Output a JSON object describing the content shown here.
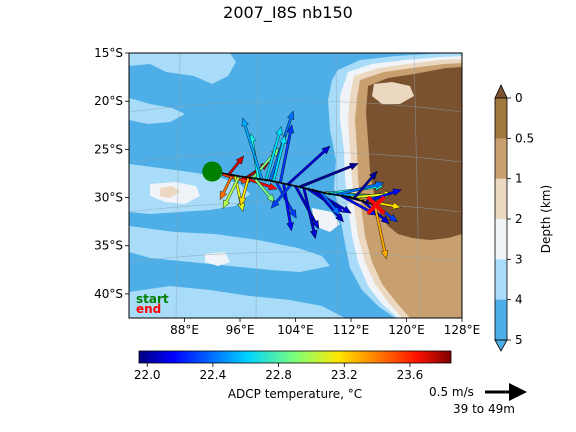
{
  "chart_data": {
    "type": "map",
    "title": "2007_I8S nb150",
    "x_axis": {
      "range_deg_e": [
        80,
        128
      ],
      "tick_values": [
        88,
        96,
        104,
        112,
        120,
        128
      ],
      "tick_labels": [
        "88°E",
        "96°E",
        "104°E",
        "112°E",
        "120°E",
        "128°E"
      ]
    },
    "y_axis": {
      "range_deg": [
        -42.5,
        -15
      ],
      "tick_values": [
        -15,
        -20,
        -25,
        -30,
        -35,
        -40
      ],
      "tick_labels": [
        "15°S",
        "20°S",
        "25°S",
        "30°S",
        "35°S",
        "40°S"
      ]
    },
    "legend": {
      "start": "start",
      "end": "end",
      "start_color": "#008000",
      "end_color": "#ff0000"
    },
    "start_point": {
      "lon": 92.0,
      "lat": -27.3
    },
    "end_point": {
      "lon": 115.6,
      "lat": -30.8
    },
    "ship_track": [
      [
        92.0,
        -27.3
      ],
      [
        96,
        -27.8
      ],
      [
        100,
        -28.2
      ],
      [
        104,
        -28.8
      ],
      [
        108,
        -29.5
      ],
      [
        112,
        -30.0
      ],
      [
        115.6,
        -30.8
      ]
    ],
    "depth_colorbar": {
      "label": "Depth (km)",
      "tick_labels": [
        "0",
        "0.5",
        "1",
        "2",
        "3",
        "4",
        "5"
      ],
      "bands": [
        "#a07840",
        "#c8a070",
        "#ecd8c0",
        "#f0f4f8",
        "#a8dcf8",
        "#4eaee8"
      ],
      "extend_top_color": "#7a5230",
      "extend_bottom_color": "#4eaee8"
    },
    "temperature_colorbar": {
      "label": "ADCP temperature, °C",
      "range": [
        21.95,
        23.85
      ],
      "tick_values": [
        22.0,
        22.4,
        22.8,
        23.2,
        23.6
      ],
      "tick_labels": [
        "22.0",
        "22.4",
        "22.8",
        "23.2",
        "23.6"
      ]
    },
    "scale_arrow": {
      "label": "0.5 m/s",
      "depth_label": "39 to 49m"
    },
    "vectors": [
      {
        "lon": 93.5,
        "lat": -27.6,
        "u": 0.35,
        "v": -0.1,
        "t": 23.5
      },
      {
        "lon": 94.3,
        "lat": -27.7,
        "u": 0.2,
        "v": 0.25,
        "t": 23.7
      },
      {
        "lon": 94.8,
        "lat": -27.8,
        "u": -0.15,
        "v": -0.3,
        "t": 23.4
      },
      {
        "lon": 95.3,
        "lat": -27.8,
        "u": 0.1,
        "v": -0.45,
        "t": 23.1
      },
      {
        "lon": 95.8,
        "lat": -27.9,
        "u": -0.2,
        "v": -0.4,
        "t": 23.0
      },
      {
        "lon": 96.3,
        "lat": -27.9,
        "u": 0.45,
        "v": -0.15,
        "t": 23.6
      },
      {
        "lon": 96.8,
        "lat": -28.0,
        "u": 0.3,
        "v": 0.2,
        "t": 23.8
      },
      {
        "lon": 97.2,
        "lat": -28.0,
        "u": -0.1,
        "v": -0.35,
        "t": 23.2
      },
      {
        "lon": 97.7,
        "lat": -28.1,
        "u": 0.35,
        "v": 0.4,
        "t": 22.9
      },
      {
        "lon": 98.2,
        "lat": -28.1,
        "u": 0.25,
        "v": -0.3,
        "t": 22.9
      },
      {
        "lon": 98.7,
        "lat": -28.2,
        "u": -0.1,
        "v": 0.6,
        "t": 22.7
      },
      {
        "lon": 99.2,
        "lat": -28.2,
        "u": -0.25,
        "v": 0.8,
        "t": 22.5
      },
      {
        "lon": 99.7,
        "lat": -28.3,
        "u": 0.2,
        "v": 0.7,
        "t": 22.6
      },
      {
        "lon": 100.3,
        "lat": -28.3,
        "u": 0.3,
        "v": 0.9,
        "t": 22.4
      },
      {
        "lon": 100.8,
        "lat": -28.4,
        "u": 0.15,
        "v": 0.6,
        "t": 22.6
      },
      {
        "lon": 101.3,
        "lat": -28.5,
        "u": 0.25,
        "v": -0.45,
        "t": 22.3
      },
      {
        "lon": 101.8,
        "lat": -28.5,
        "u": 0.15,
        "v": 0.75,
        "t": 22.3
      },
      {
        "lon": 102.3,
        "lat": -28.6,
        "u": 0.1,
        "v": -0.6,
        "t": 22.2
      },
      {
        "lon": 102.8,
        "lat": -28.7,
        "u": 0.55,
        "v": 0.5,
        "t": 22.1
      },
      {
        "lon": 103.3,
        "lat": -28.7,
        "u": -0.25,
        "v": -0.3,
        "t": 22.3
      },
      {
        "lon": 104.0,
        "lat": -28.8,
        "u": 0.3,
        "v": -0.55,
        "t": 22.1
      },
      {
        "lon": 104.6,
        "lat": -28.9,
        "u": 0.75,
        "v": 0.3,
        "t": 22.0
      },
      {
        "lon": 105.2,
        "lat": -29.0,
        "u": 0.15,
        "v": -0.65,
        "t": 22.1
      },
      {
        "lon": 105.8,
        "lat": -29.1,
        "u": 0.45,
        "v": -0.3,
        "t": 22.2
      },
      {
        "lon": 106.4,
        "lat": -29.2,
        "u": 0.5,
        "v": -0.3,
        "t": 22.1
      },
      {
        "lon": 107.0,
        "lat": -29.3,
        "u": 0.35,
        "v": -0.4,
        "t": 22.1
      },
      {
        "lon": 107.6,
        "lat": -29.4,
        "u": 0.25,
        "v": -0.3,
        "t": 22.4
      },
      {
        "lon": 108.2,
        "lat": -29.5,
        "u": 0.8,
        "v": -0.05,
        "t": 22.9
      },
      {
        "lon": 108.8,
        "lat": -29.6,
        "u": 0.7,
        "v": 0.1,
        "t": 22.7
      },
      {
        "lon": 109.4,
        "lat": -29.6,
        "u": 0.65,
        "v": -0.05,
        "t": 22.5
      },
      {
        "lon": 110.0,
        "lat": -29.7,
        "u": 0.6,
        "v": 0.15,
        "t": 22.4
      },
      {
        "lon": 110.6,
        "lat": -29.8,
        "u": 0.45,
        "v": -0.25,
        "t": 22.2
      },
      {
        "lon": 111.2,
        "lat": -29.9,
        "u": 0.45,
        "v": -0.1,
        "t": 22.2
      },
      {
        "lon": 111.8,
        "lat": -30.0,
        "u": 0.55,
        "v": 0.05,
        "t": 23.1
      },
      {
        "lon": 112.4,
        "lat": -30.1,
        "u": 0.3,
        "v": 0.35,
        "t": 22.0
      },
      {
        "lon": 113.0,
        "lat": -30.2,
        "u": 0.55,
        "v": -0.1,
        "t": 23.2
      },
      {
        "lon": 113.6,
        "lat": -30.3,
        "u": 0.35,
        "v": -0.3,
        "t": 22.1
      },
      {
        "lon": 114.2,
        "lat": -30.4,
        "u": 0.45,
        "v": 0.15,
        "t": 22.2
      },
      {
        "lon": 114.8,
        "lat": -30.5,
        "u": 0.35,
        "v": -0.25,
        "t": 22.3
      },
      {
        "lon": 115.4,
        "lat": -30.7,
        "u": 0.15,
        "v": -0.7,
        "t": 23.3
      }
    ]
  }
}
